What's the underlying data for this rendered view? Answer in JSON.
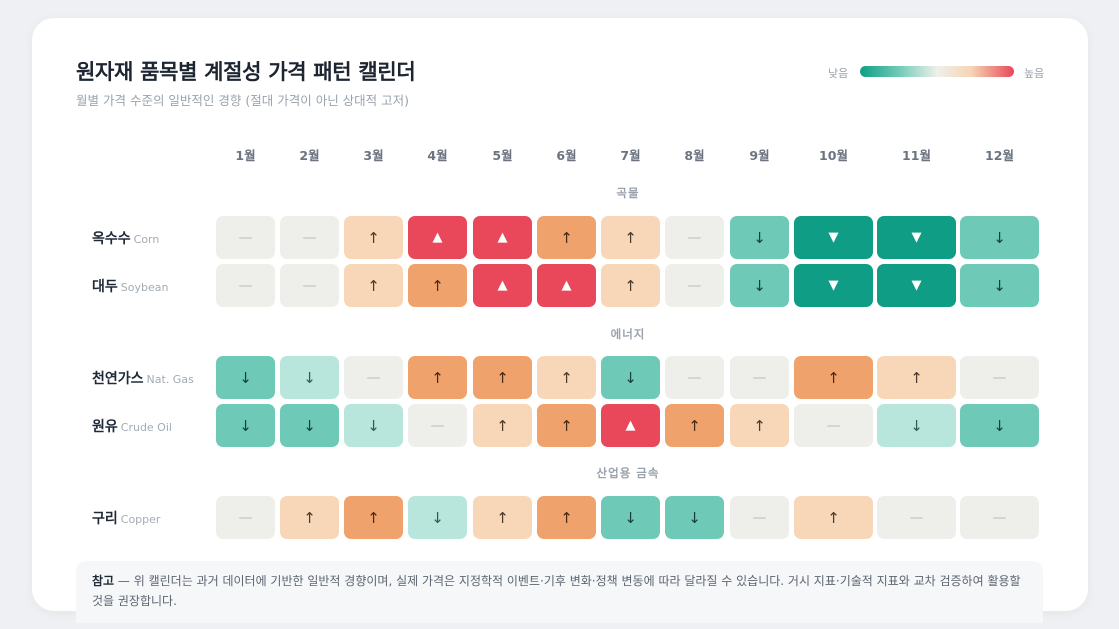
{
  "title": "원자재 품목별 계절성 가격 패턴 캘린더",
  "subtitle": "월별 가격 수준의 일반적인 경향 (절대 가격이 아닌 상대적 고저)",
  "legend": {
    "low": "낮음",
    "high": "높음",
    "colors": [
      "#0f9e85",
      "#6fcab6",
      "#eef0ea",
      "#f5d6b5",
      "#e8485a"
    ]
  },
  "months": [
    "1월",
    "2월",
    "3월",
    "4월",
    "5월",
    "6월",
    "7월",
    "8월",
    "9월",
    "10월",
    "11월",
    "12월"
  ],
  "level_symbols": {
    "-3": "▼",
    "-2": "↓",
    "-1": "↓",
    "0": "—",
    "1": "↑",
    "2": "↑",
    "3": "▲"
  },
  "chart_data": {
    "type": "heatmap",
    "scale": "relative price level, -3 (lowest) to 3 (highest)",
    "x": [
      "1월",
      "2월",
      "3월",
      "4월",
      "5월",
      "6월",
      "7월",
      "8월",
      "9월",
      "10월",
      "11월",
      "12월"
    ],
    "groups": [
      {
        "name": "곡물",
        "rows": [
          {
            "ko": "옥수수",
            "en": "Corn",
            "values": [
              0,
              0,
              1,
              3,
              3,
              2,
              1,
              0,
              -2,
              -3,
              -3,
              -2
            ]
          },
          {
            "ko": "대두",
            "en": "Soybean",
            "values": [
              0,
              0,
              1,
              2,
              3,
              3,
              1,
              0,
              -2,
              -3,
              -3,
              -2
            ]
          }
        ]
      },
      {
        "name": "에너지",
        "rows": [
          {
            "ko": "천연가스",
            "en": "Nat. Gas",
            "values": [
              -2,
              -1,
              0,
              2,
              2,
              1,
              -2,
              0,
              0,
              2,
              1,
              0
            ]
          },
          {
            "ko": "원유",
            "en": "Crude Oil",
            "values": [
              -2,
              -2,
              -1,
              0,
              1,
              2,
              3,
              2,
              1,
              0,
              -1,
              -2
            ]
          }
        ]
      },
      {
        "name": "산업용 금속",
        "rows": [
          {
            "ko": "구리",
            "en": "Copper",
            "values": [
              0,
              1,
              2,
              -1,
              1,
              2,
              -2,
              -2,
              0,
              1,
              0,
              0
            ]
          }
        ]
      }
    ]
  },
  "note": {
    "label": "참고",
    "text": " — 위 캘린더는 과거 데이터에 기반한 일반적 경향이며, 실제 가격은 지정학적 이벤트·기후 변화·정책 변동에 따라 달라질 수 있습니다. 거시 지표·기술적 지표와 교차 검증하여 활용할 것을 권장합니다."
  }
}
